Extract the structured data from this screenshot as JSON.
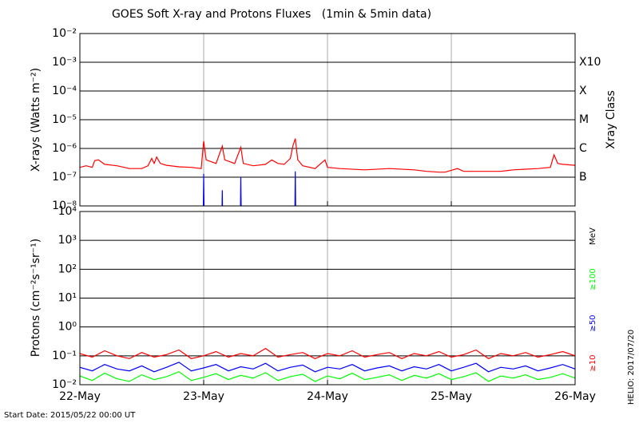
{
  "chart_data": [
    {
      "type": "line",
      "title": "GOES Soft X-ray and Protons Fluxes   (1min & 5min data)",
      "y_label": "X-rays (Watts m⁻²)",
      "y2_label": "Xray Class",
      "log_scale": true,
      "grid": true,
      "xlim": [
        0,
        4
      ],
      "xticks": [
        0,
        1,
        2,
        3,
        4
      ],
      "ylim": [
        1e-08,
        0.01
      ],
      "yticks": [
        {
          "value": 1e-08,
          "label": "10⁻⁸"
        },
        {
          "value": 1e-07,
          "label": "10⁻⁷"
        },
        {
          "value": 1e-06,
          "label": "10⁻⁶"
        },
        {
          "value": 1e-05,
          "label": "10⁻⁵"
        },
        {
          "value": 0.0001,
          "label": "10⁻⁴"
        },
        {
          "value": 0.001,
          "label": "10⁻³"
        },
        {
          "value": 0.01,
          "label": "10⁻²"
        }
      ],
      "class_labels": [
        {
          "value": 0.001,
          "label": "X10"
        },
        {
          "value": 0.0001,
          "label": "X"
        },
        {
          "value": 1e-05,
          "label": "M"
        },
        {
          "value": 1e-06,
          "label": "C"
        },
        {
          "value": 1e-07,
          "label": "B"
        }
      ],
      "series": [
        {
          "color": "#ff0000",
          "x": [
            0,
            0.05,
            0.1,
            0.12,
            0.15,
            0.2,
            0.3,
            0.4,
            0.5,
            0.55,
            0.58,
            0.6,
            0.62,
            0.65,
            0.7,
            0.8,
            0.9,
            0.98,
            1.0,
            1.02,
            1.1,
            1.15,
            1.17,
            1.25,
            1.3,
            1.32,
            1.4,
            1.5,
            1.55,
            1.6,
            1.65,
            1.7,
            1.72,
            1.74,
            1.76,
            1.8,
            1.9,
            1.98,
            2.0,
            2.1,
            2.3,
            2.5,
            2.7,
            2.8,
            2.9,
            2.95,
            3.05,
            3.1,
            3.3,
            3.4,
            3.5,
            3.6,
            3.7,
            3.8,
            3.83,
            3.86,
            3.9,
            4.0
          ],
          "values": [
            2.2e-07,
            2.5e-07,
            2.2e-07,
            3.8e-07,
            4e-07,
            2.8e-07,
            2.5e-07,
            2e-07,
            2e-07,
            2.5e-07,
            4.5e-07,
            3e-07,
            5e-07,
            3e-07,
            2.6e-07,
            2.3e-07,
            2.2e-07,
            2e-07,
            1.8e-06,
            4e-07,
            3e-07,
            1.2e-06,
            4e-07,
            3e-07,
            1.1e-06,
            3e-07,
            2.5e-07,
            2.8e-07,
            4e-07,
            3e-07,
            2.8e-07,
            4.5e-07,
            1.2e-06,
            2.2e-06,
            4e-07,
            2.5e-07,
            2e-07,
            4e-07,
            2.2e-07,
            2e-07,
            1.8e-07,
            2e-07,
            1.8e-07,
            1.6e-07,
            1.5e-07,
            1.5e-07,
            2e-07,
            1.6e-07,
            1.6e-07,
            1.6e-07,
            1.8e-07,
            1.9e-07,
            2e-07,
            2.2e-07,
            6e-07,
            3e-07,
            2.8e-07,
            2.6e-07
          ]
        },
        {
          "color": "#0000ff",
          "x": [
            0.995,
            1.0,
            1.005,
            1.15,
            1.145,
            1.15,
            1.155,
            1.3,
            1.295,
            1.3,
            1.305,
            1.74,
            1.735,
            1.74,
            1.745
          ],
          "values": [
            1e-09,
            1.3e-07,
            1e-09,
            null,
            1e-09,
            3.5e-08,
            1e-09,
            null,
            1e-09,
            1e-07,
            1e-09,
            null,
            1e-09,
            1.6e-07,
            1e-09
          ]
        }
      ]
    },
    {
      "type": "line",
      "y_label": "Protons (cm⁻²s⁻¹sr⁻¹)",
      "units_label": "MeV",
      "log_scale": true,
      "grid": true,
      "threshold": 10,
      "xlim": [
        0,
        4
      ],
      "xticks": [
        {
          "value": 0,
          "label": "22-May"
        },
        {
          "value": 1,
          "label": "23-May"
        },
        {
          "value": 2,
          "label": "24-May"
        },
        {
          "value": 3,
          "label": "25-May"
        },
        {
          "value": 4,
          "label": "26-May"
        }
      ],
      "ylim": [
        0.01,
        10000
      ],
      "yticks": [
        {
          "value": 0.01,
          "label": "10⁻²"
        },
        {
          "value": 0.1,
          "label": "10⁻¹"
        },
        {
          "value": 1,
          "label": "10⁰"
        },
        {
          "value": 10,
          "label": "10¹"
        },
        {
          "value": 100,
          "label": "10²"
        },
        {
          "value": 1000,
          "label": "10³"
        },
        {
          "value": 10000,
          "label": "10⁴"
        }
      ],
      "x": [
        0,
        0.1,
        0.2,
        0.3,
        0.4,
        0.5,
        0.6,
        0.7,
        0.8,
        0.9,
        1.0,
        1.1,
        1.2,
        1.3,
        1.4,
        1.5,
        1.6,
        1.7,
        1.8,
        1.9,
        2.0,
        2.1,
        2.2,
        2.3,
        2.4,
        2.5,
        2.6,
        2.7,
        2.8,
        2.9,
        3.0,
        3.1,
        3.2,
        3.3,
        3.4,
        3.5,
        3.6,
        3.7,
        3.8,
        3.9,
        4.0
      ],
      "series": [
        {
          "name": "≥100",
          "color": "#00ff00",
          "values": [
            0.02,
            0.014,
            0.025,
            0.016,
            0.013,
            0.022,
            0.015,
            0.019,
            0.028,
            0.014,
            0.018,
            0.024,
            0.015,
            0.021,
            0.017,
            0.026,
            0.014,
            0.019,
            0.023,
            0.013,
            0.02,
            0.016,
            0.025,
            0.015,
            0.018,
            0.022,
            0.014,
            0.021,
            0.017,
            0.024,
            0.015,
            0.019,
            0.026,
            0.013,
            0.02,
            0.017,
            0.022,
            0.015,
            0.018,
            0.024,
            0.017
          ]
        },
        {
          "name": "≥50",
          "color": "#0000ff",
          "values": [
            0.04,
            0.03,
            0.05,
            0.035,
            0.03,
            0.045,
            0.028,
            0.04,
            0.06,
            0.03,
            0.038,
            0.05,
            0.03,
            0.042,
            0.035,
            0.055,
            0.03,
            0.04,
            0.048,
            0.028,
            0.04,
            0.035,
            0.05,
            0.03,
            0.038,
            0.045,
            0.03,
            0.042,
            0.035,
            0.05,
            0.03,
            0.04,
            0.055,
            0.028,
            0.04,
            0.035,
            0.045,
            0.03,
            0.038,
            0.05,
            0.035
          ]
        },
        {
          "name": "≥10",
          "color": "#ff0000",
          "values": [
            0.12,
            0.09,
            0.15,
            0.1,
            0.08,
            0.13,
            0.09,
            0.11,
            0.16,
            0.08,
            0.1,
            0.14,
            0.09,
            0.12,
            0.1,
            0.18,
            0.09,
            0.11,
            0.13,
            0.08,
            0.12,
            0.1,
            0.15,
            0.09,
            0.11,
            0.13,
            0.08,
            0.12,
            0.1,
            0.14,
            0.09,
            0.11,
            0.16,
            0.08,
            0.12,
            0.1,
            0.13,
            0.09,
            0.11,
            0.14,
            0.1
          ]
        }
      ]
    }
  ],
  "footer": {
    "start_date": "Start Date: 2015/05/22 00:00 UT",
    "stamp": "HELIO: 2017/07/20"
  }
}
